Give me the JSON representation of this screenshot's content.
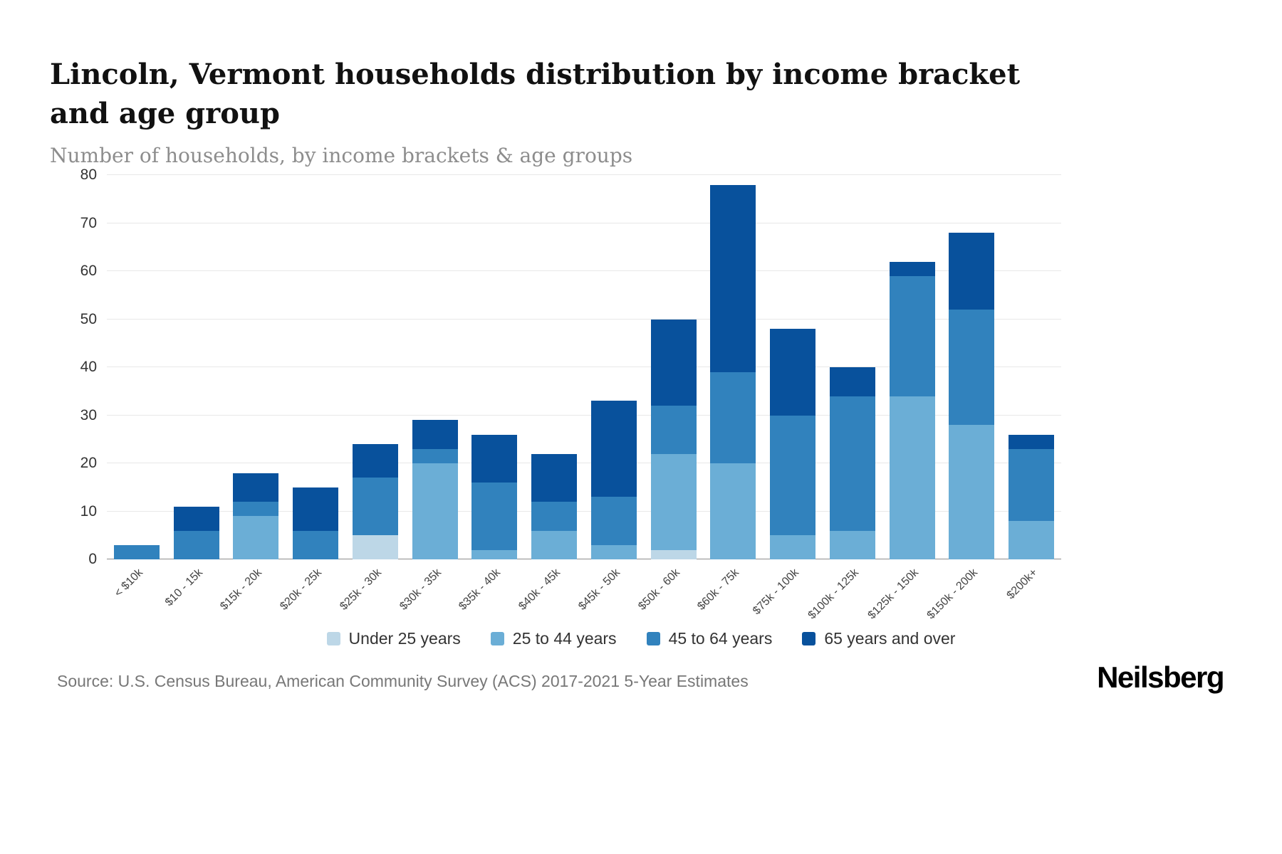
{
  "header": {
    "title": "Lincoln, Vermont households distribution by income bracket and age group",
    "subtitle": "Number of households, by income brackets & age groups"
  },
  "footer": {
    "source": "Source: U.S. Census Bureau, American Community Survey (ACS) 2017-2021 5-Year Estimates",
    "brand": "Neilsberg"
  },
  "chart_data": {
    "type": "bar",
    "stacked": true,
    "title": "Lincoln, Vermont households distribution by income bracket and age group",
    "subtitle": "Number of households, by income brackets & age groups",
    "xlabel": "",
    "ylabel": "Number of households",
    "ylim": [
      0,
      80
    ],
    "yticks": [
      0,
      10,
      20,
      30,
      40,
      50,
      60,
      70,
      80
    ],
    "grid": true,
    "legend_position": "bottom",
    "categories": [
      "< $10k",
      "$10 - 15k",
      "$15k - 20k",
      "$20k - 25k",
      "$25k - 30k",
      "$30k - 35k",
      "$35k - 40k",
      "$40k - 45k",
      "$45k - 50k",
      "$50k - 60k",
      "$60k - 75k",
      "$75k - 100k",
      "$100k - 125k",
      "$125k - 150k",
      "$150k - 200k",
      "$200k+"
    ],
    "series": [
      {
        "name": "Under 25 years",
        "color": "#bdd7e7",
        "values": [
          0,
          0,
          0,
          0,
          5,
          0,
          0,
          0,
          0,
          2,
          0,
          0,
          0,
          0,
          0,
          0
        ]
      },
      {
        "name": "25 to 44 years",
        "color": "#6baed6",
        "values": [
          0,
          0,
          9,
          0,
          0,
          20,
          2,
          6,
          3,
          20,
          20,
          5,
          6,
          34,
          28,
          8
        ]
      },
      {
        "name": "45 to 64 years",
        "color": "#3182bd",
        "values": [
          3,
          6,
          3,
          6,
          12,
          3,
          14,
          6,
          10,
          10,
          19,
          25,
          28,
          25,
          24,
          15
        ]
      },
      {
        "name": "65 years and over",
        "color": "#08519c",
        "values": [
          0,
          5,
          6,
          9,
          7,
          6,
          10,
          10,
          20,
          18,
          39,
          18,
          6,
          3,
          16,
          3
        ]
      }
    ],
    "totals": [
      3,
      11,
      18,
      15,
      24,
      29,
      26,
      22,
      33,
      50,
      78,
      48,
      40,
      62,
      68,
      26
    ]
  }
}
